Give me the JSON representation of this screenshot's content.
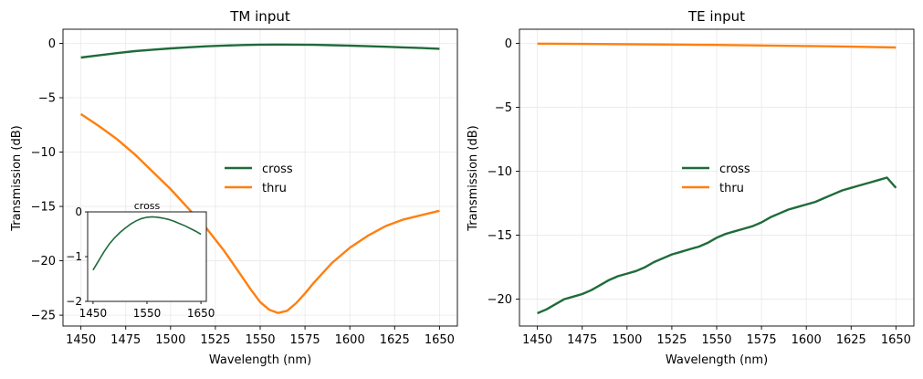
{
  "colors": {
    "cross": "#1f6b3a",
    "thru": "#ff7f0e"
  },
  "chart_data": [
    {
      "type": "line",
      "title": "TM input",
      "xlabel": "Wavelength (nm)",
      "ylabel": "Transmission (dB)",
      "xlim": [
        1440,
        1660
      ],
      "ylim": [
        -26,
        1.3
      ],
      "xticks": [
        1450,
        1475,
        1500,
        1525,
        1550,
        1575,
        1600,
        1625,
        1650
      ],
      "yticks": [
        0,
        -5,
        -10,
        -15,
        -20,
        -25
      ],
      "grid": true,
      "legend": "center-right",
      "series": [
        {
          "name": "cross",
          "x": [
            1450,
            1460,
            1470,
            1480,
            1490,
            1500,
            1510,
            1520,
            1530,
            1540,
            1550,
            1560,
            1570,
            1580,
            1590,
            1600,
            1610,
            1620,
            1630,
            1640,
            1650
          ],
          "y": [
            -1.3,
            -1.1,
            -0.9,
            -0.72,
            -0.58,
            -0.46,
            -0.36,
            -0.27,
            -0.2,
            -0.15,
            -0.12,
            -0.11,
            -0.12,
            -0.14,
            -0.17,
            -0.21,
            -0.26,
            -0.31,
            -0.37,
            -0.43,
            -0.5
          ]
        },
        {
          "name": "thru",
          "x": [
            1450,
            1460,
            1470,
            1480,
            1490,
            1500,
            1510,
            1520,
            1530,
            1540,
            1545,
            1550,
            1555,
            1560,
            1565,
            1570,
            1575,
            1580,
            1590,
            1600,
            1610,
            1620,
            1630,
            1640,
            1650
          ],
          "y": [
            -6.5,
            -7.6,
            -8.8,
            -10.2,
            -11.8,
            -13.4,
            -15.2,
            -17.0,
            -19.1,
            -21.5,
            -22.7,
            -23.8,
            -24.5,
            -24.8,
            -24.6,
            -23.9,
            -23.0,
            -22.0,
            -20.2,
            -18.8,
            -17.7,
            -16.8,
            -16.2,
            -15.8,
            -15.4
          ]
        }
      ],
      "inset": {
        "title": "cross",
        "xlim": [
          1440,
          1660
        ],
        "ylim": [
          -2,
          0
        ],
        "xticks": [
          1450,
          1550,
          1650
        ],
        "yticks": [
          0,
          -1,
          -2
        ],
        "series": "cross"
      }
    },
    {
      "type": "line",
      "title": "TE input",
      "xlabel": "Wavelength (nm)",
      "ylabel": "Transmission (dB)",
      "xlim": [
        1440,
        1660
      ],
      "ylim": [
        -22.1,
        1.1
      ],
      "xticks": [
        1450,
        1475,
        1500,
        1525,
        1550,
        1575,
        1600,
        1625,
        1650
      ],
      "yticks": [
        0,
        -5,
        -10,
        -15,
        -20
      ],
      "grid": true,
      "legend": "center-right",
      "series": [
        {
          "name": "cross",
          "x": [
            1450,
            1455,
            1460,
            1465,
            1470,
            1475,
            1480,
            1485,
            1490,
            1495,
            1500,
            1505,
            1510,
            1515,
            1520,
            1525,
            1530,
            1535,
            1540,
            1545,
            1550,
            1555,
            1560,
            1565,
            1570,
            1575,
            1580,
            1585,
            1590,
            1595,
            1600,
            1605,
            1610,
            1615,
            1620,
            1625,
            1630,
            1635,
            1640,
            1645,
            1650
          ],
          "y": [
            -21.1,
            -20.8,
            -20.4,
            -20.0,
            -19.8,
            -19.6,
            -19.3,
            -18.9,
            -18.5,
            -18.2,
            -18.0,
            -17.8,
            -17.5,
            -17.1,
            -16.8,
            -16.5,
            -16.3,
            -16.1,
            -15.9,
            -15.6,
            -15.2,
            -14.9,
            -14.7,
            -14.5,
            -14.3,
            -14.0,
            -13.6,
            -13.3,
            -13.0,
            -12.8,
            -12.6,
            -12.4,
            -12.1,
            -11.8,
            -11.5,
            -11.3,
            -11.1,
            -10.9,
            -10.7,
            -10.5,
            -11.3
          ]
        },
        {
          "name": "thru",
          "x": [
            1450,
            1475,
            1500,
            1525,
            1550,
            1575,
            1600,
            1625,
            1650
          ],
          "y": [
            -0.03,
            -0.05,
            -0.07,
            -0.1,
            -0.13,
            -0.17,
            -0.21,
            -0.26,
            -0.33
          ]
        }
      ]
    }
  ]
}
